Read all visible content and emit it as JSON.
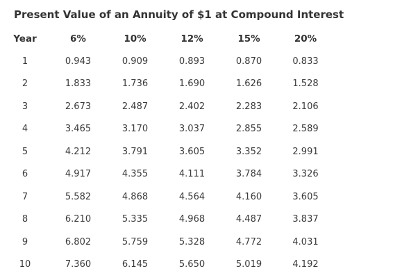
{
  "title": "Present Value of an Annuity of $1 at Compound Interest",
  "table": {
    "headers": [
      "Year",
      "6%",
      "10%",
      "12%",
      "15%",
      "20%"
    ],
    "rows": [
      [
        "1",
        "0.943",
        "0.909",
        "0.893",
        "0.870",
        "0.833"
      ],
      [
        "2",
        "1.833",
        "1.736",
        "1.690",
        "1.626",
        "1.528"
      ],
      [
        "3",
        "2.673",
        "2.487",
        "2.402",
        "2.283",
        "2.106"
      ],
      [
        "4",
        "3.465",
        "3.170",
        "3.037",
        "2.855",
        "2.589"
      ],
      [
        "5",
        "4.212",
        "3.791",
        "3.605",
        "3.352",
        "2.991"
      ],
      [
        "6",
        "4.917",
        "4.355",
        "4.111",
        "3.784",
        "3.326"
      ],
      [
        "7",
        "5.582",
        "4.868",
        "4.564",
        "4.160",
        "3.605"
      ],
      [
        "8",
        "6.210",
        "5.335",
        "4.968",
        "4.487",
        "3.837"
      ],
      [
        "9",
        "6.802",
        "5.759",
        "5.328",
        "4.772",
        "4.031"
      ],
      [
        "10",
        "7.360",
        "6.145",
        "5.650",
        "5.019",
        "4.192"
      ]
    ]
  }
}
